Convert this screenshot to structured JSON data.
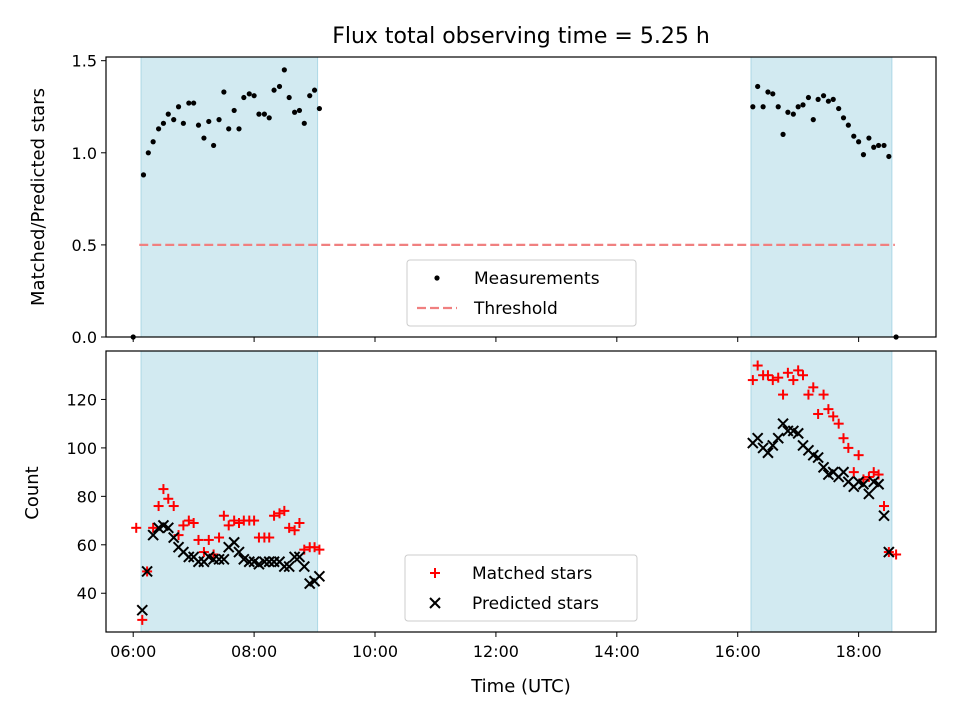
{
  "chart_data": [
    {
      "type": "scatter",
      "title": "Flux total observing time = 5.25 h",
      "ylabel": "Matched/Predicted stars",
      "xlim": [
        5.55,
        19.28
      ],
      "ylim": [
        0,
        1.52
      ],
      "yticks": [
        0.0,
        0.5,
        1.0,
        1.5
      ],
      "ytick_labels": [
        "0.0",
        "0.5",
        "1.0",
        "1.5"
      ],
      "shaded_intervals": [
        [
          6.13,
          9.05
        ],
        [
          16.22,
          18.55
        ]
      ],
      "shade_color": "#add8e6",
      "threshold": {
        "name": "Threshold",
        "y": 0.5,
        "x_range": [
          6.1,
          18.6
        ],
        "color": "#f08080"
      },
      "legend": {
        "position": "lower-center",
        "entries": [
          "Measurements",
          "Threshold"
        ]
      },
      "series": [
        {
          "name": "Measurements",
          "color": "#000000",
          "points": [
            [
              6.0,
              0.0
            ],
            [
              6.17,
              0.88
            ],
            [
              6.25,
              1.0
            ],
            [
              6.33,
              1.06
            ],
            [
              6.42,
              1.13
            ],
            [
              6.5,
              1.16
            ],
            [
              6.58,
              1.21
            ],
            [
              6.67,
              1.18
            ],
            [
              6.75,
              1.25
            ],
            [
              6.83,
              1.16
            ],
            [
              6.92,
              1.27
            ],
            [
              7.0,
              1.27
            ],
            [
              7.08,
              1.15
            ],
            [
              7.17,
              1.08
            ],
            [
              7.25,
              1.17
            ],
            [
              7.33,
              1.04
            ],
            [
              7.42,
              1.18
            ],
            [
              7.5,
              1.33
            ],
            [
              7.58,
              1.13
            ],
            [
              7.67,
              1.23
            ],
            [
              7.75,
              1.13
            ],
            [
              7.83,
              1.3
            ],
            [
              7.92,
              1.32
            ],
            [
              8.0,
              1.31
            ],
            [
              8.08,
              1.21
            ],
            [
              8.17,
              1.21
            ],
            [
              8.25,
              1.19
            ],
            [
              8.33,
              1.34
            ],
            [
              8.42,
              1.36
            ],
            [
              8.5,
              1.45
            ],
            [
              8.58,
              1.3
            ],
            [
              8.67,
              1.22
            ],
            [
              8.75,
              1.23
            ],
            [
              8.83,
              1.16
            ],
            [
              8.92,
              1.31
            ],
            [
              9.0,
              1.34
            ],
            [
              9.08,
              1.24
            ],
            [
              16.25,
              1.25
            ],
            [
              16.33,
              1.36
            ],
            [
              16.42,
              1.25
            ],
            [
              16.5,
              1.33
            ],
            [
              16.58,
              1.32
            ],
            [
              16.67,
              1.25
            ],
            [
              16.75,
              1.1
            ],
            [
              16.83,
              1.22
            ],
            [
              16.92,
              1.21
            ],
            [
              17.0,
              1.25
            ],
            [
              17.08,
              1.26
            ],
            [
              17.17,
              1.3
            ],
            [
              17.25,
              1.18
            ],
            [
              17.33,
              1.29
            ],
            [
              17.42,
              1.31
            ],
            [
              17.5,
              1.28
            ],
            [
              17.58,
              1.29
            ],
            [
              17.67,
              1.24
            ],
            [
              17.75,
              1.19
            ],
            [
              17.83,
              1.15
            ],
            [
              17.92,
              1.09
            ],
            [
              18.0,
              1.06
            ],
            [
              18.08,
              0.99
            ],
            [
              18.17,
              1.08
            ],
            [
              18.25,
              1.03
            ],
            [
              18.33,
              1.04
            ],
            [
              18.42,
              1.04
            ],
            [
              18.5,
              0.98
            ],
            [
              18.62,
              0.0
            ]
          ]
        }
      ]
    },
    {
      "type": "scatter",
      "xlabel": "Time (UTC)",
      "ylabel": "Count",
      "xlim": [
        5.55,
        19.28
      ],
      "ylim": [
        24,
        140
      ],
      "xticks": [
        6,
        8,
        10,
        12,
        14,
        16,
        18
      ],
      "xtick_labels": [
        "06:00",
        "08:00",
        "10:00",
        "12:00",
        "14:00",
        "16:00",
        "18:00"
      ],
      "yticks": [
        40,
        60,
        80,
        100,
        120
      ],
      "ytick_labels": [
        "40",
        "60",
        "80",
        "100",
        "120"
      ],
      "shaded_intervals": [
        [
          6.13,
          9.05
        ],
        [
          16.22,
          18.55
        ]
      ],
      "shade_color": "#add8e6",
      "legend": {
        "position": "lower-center",
        "entries": [
          "Matched stars",
          "Predicted stars"
        ]
      },
      "series": [
        {
          "name": "Matched stars",
          "marker": "+",
          "color": "#ff0000",
          "points": [
            [
              6.05,
              67
            ],
            [
              6.15,
              29
            ],
            [
              6.23,
              49
            ],
            [
              6.33,
              67
            ],
            [
              6.42,
              76
            ],
            [
              6.5,
              83
            ],
            [
              6.58,
              79
            ],
            [
              6.67,
              76
            ],
            [
              6.75,
              64
            ],
            [
              6.83,
              68
            ],
            [
              6.92,
              70
            ],
            [
              7.0,
              69
            ],
            [
              7.08,
              62
            ],
            [
              7.17,
              57
            ],
            [
              7.25,
              62
            ],
            [
              7.33,
              56
            ],
            [
              7.42,
              63
            ],
            [
              7.5,
              72
            ],
            [
              7.58,
              68
            ],
            [
              7.67,
              70
            ],
            [
              7.75,
              69
            ],
            [
              7.83,
              70
            ],
            [
              7.92,
              70
            ],
            [
              8.0,
              70
            ],
            [
              8.08,
              63
            ],
            [
              8.17,
              63
            ],
            [
              8.25,
              63
            ],
            [
              8.33,
              72
            ],
            [
              8.42,
              73
            ],
            [
              8.5,
              74
            ],
            [
              8.58,
              67
            ],
            [
              8.67,
              66
            ],
            [
              8.75,
              69
            ],
            [
              8.83,
              58
            ],
            [
              8.92,
              59
            ],
            [
              9.0,
              59
            ],
            [
              9.08,
              58
            ],
            [
              16.25,
              128
            ],
            [
              16.33,
              134
            ],
            [
              16.42,
              130
            ],
            [
              16.5,
              130
            ],
            [
              16.58,
              128
            ],
            [
              16.67,
              129
            ],
            [
              16.75,
              122
            ],
            [
              16.83,
              131
            ],
            [
              16.92,
              128
            ],
            [
              17.0,
              132
            ],
            [
              17.08,
              130
            ],
            [
              17.17,
              122
            ],
            [
              17.25,
              125
            ],
            [
              17.33,
              114
            ],
            [
              17.42,
              122
            ],
            [
              17.5,
              116
            ],
            [
              17.58,
              113
            ],
            [
              17.67,
              110
            ],
            [
              17.75,
              104
            ],
            [
              17.83,
              100
            ],
            [
              17.92,
              90
            ],
            [
              18.0,
              97
            ],
            [
              18.08,
              87
            ],
            [
              18.17,
              88
            ],
            [
              18.25,
              90
            ],
            [
              18.33,
              89
            ],
            [
              18.42,
              76
            ],
            [
              18.5,
              57
            ],
            [
              18.62,
              56
            ]
          ]
        },
        {
          "name": "Predicted stars",
          "marker": "x",
          "color": "#000000",
          "points": [
            [
              6.15,
              33
            ],
            [
              6.23,
              49
            ],
            [
              6.33,
              64
            ],
            [
              6.42,
              67
            ],
            [
              6.5,
              68
            ],
            [
              6.58,
              67
            ],
            [
              6.67,
              63
            ],
            [
              6.75,
              59
            ],
            [
              6.83,
              57
            ],
            [
              6.92,
              55
            ],
            [
              7.0,
              55
            ],
            [
              7.08,
              53
            ],
            [
              7.17,
              53
            ],
            [
              7.25,
              55
            ],
            [
              7.33,
              54
            ],
            [
              7.42,
              54
            ],
            [
              7.5,
              54
            ],
            [
              7.58,
              59
            ],
            [
              7.67,
              61
            ],
            [
              7.75,
              57
            ],
            [
              7.83,
              54
            ],
            [
              7.92,
              53
            ],
            [
              8.0,
              53
            ],
            [
              8.08,
              52
            ],
            [
              8.17,
              53
            ],
            [
              8.25,
              53
            ],
            [
              8.33,
              53
            ],
            [
              8.42,
              53
            ],
            [
              8.5,
              51
            ],
            [
              8.58,
              51
            ],
            [
              8.67,
              55
            ],
            [
              8.75,
              55
            ],
            [
              8.83,
              51
            ],
            [
              8.92,
              44
            ],
            [
              9.0,
              45
            ],
            [
              9.08,
              47
            ],
            [
              16.25,
              102
            ],
            [
              16.33,
              104
            ],
            [
              16.42,
              100
            ],
            [
              16.5,
              98
            ],
            [
              16.58,
              101
            ],
            [
              16.67,
              104
            ],
            [
              16.75,
              110
            ],
            [
              16.83,
              107
            ],
            [
              16.92,
              107
            ],
            [
              17.0,
              106
            ],
            [
              17.08,
              101
            ],
            [
              17.17,
              99
            ],
            [
              17.25,
              97
            ],
            [
              17.33,
              96
            ],
            [
              17.42,
              92
            ],
            [
              17.5,
              89
            ],
            [
              17.58,
              90
            ],
            [
              17.67,
              88
            ],
            [
              17.75,
              90
            ],
            [
              17.83,
              86
            ],
            [
              17.92,
              84
            ],
            [
              18.0,
              86
            ],
            [
              18.08,
              85
            ],
            [
              18.17,
              81
            ],
            [
              18.25,
              86
            ],
            [
              18.33,
              85
            ],
            [
              18.42,
              72
            ],
            [
              18.5,
              57
            ]
          ]
        }
      ]
    }
  ]
}
